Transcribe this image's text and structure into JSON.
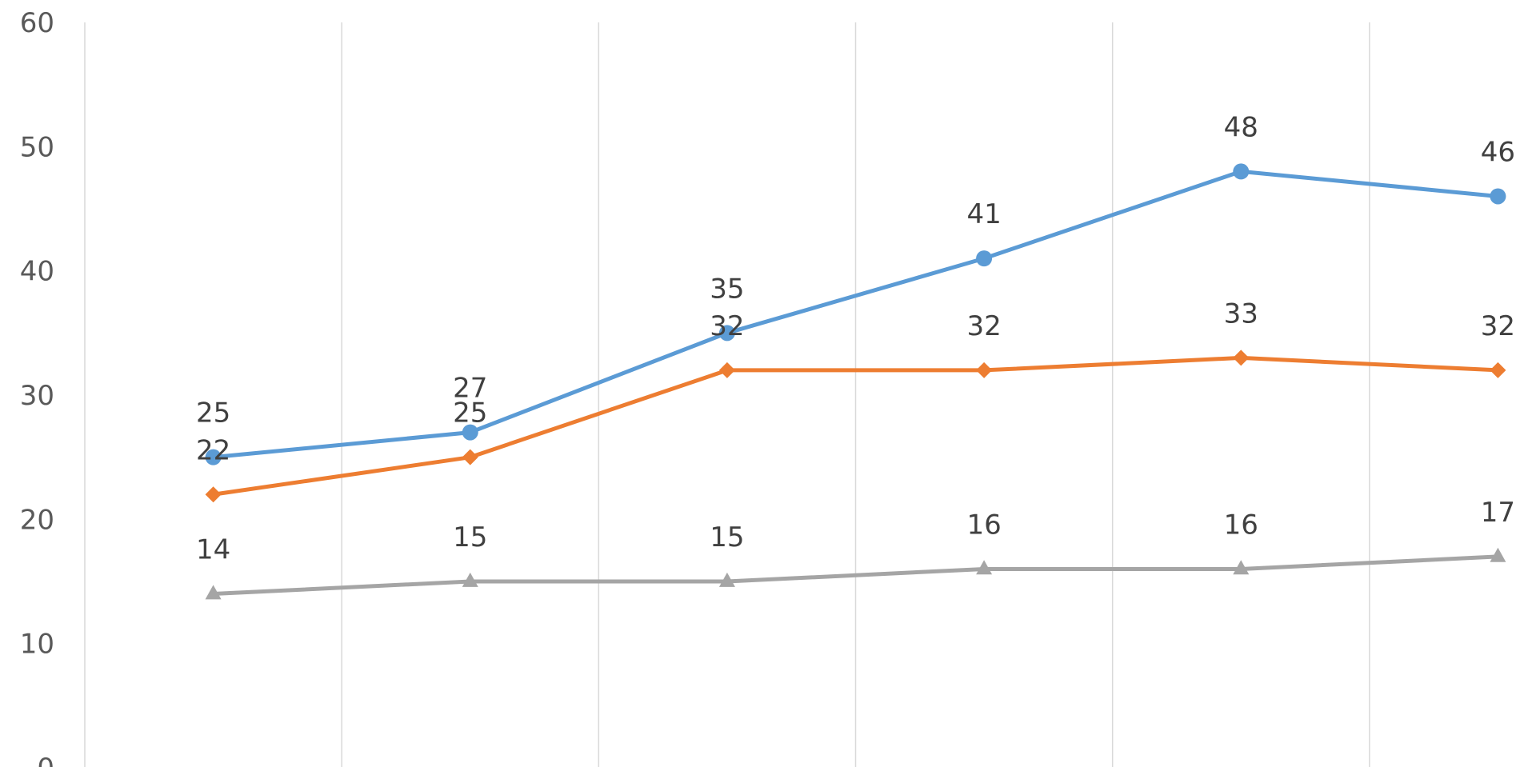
{
  "chart_data": {
    "type": "line",
    "title": "",
    "xlabel": "",
    "ylabel": "",
    "ylim": [
      0,
      60
    ],
    "yticks": [
      "0",
      "10",
      "20",
      "30",
      "40",
      "50",
      "60"
    ],
    "grid": "vertical",
    "legend": "none",
    "x_count": 6,
    "series": [
      {
        "values": [
          25,
          27,
          35,
          41,
          48,
          46
        ],
        "labels": [
          "25",
          "27",
          "35",
          "41",
          "48",
          "46"
        ],
        "color": "#5b9bd5",
        "marker": "circle"
      },
      {
        "values": [
          22,
          25,
          32,
          32,
          33,
          32
        ],
        "labels": [
          "22",
          "25",
          "32",
          "32",
          "33",
          "32"
        ],
        "color": "#ed7d31",
        "marker": "diamond"
      },
      {
        "values": [
          14,
          15,
          15,
          16,
          16,
          17
        ],
        "labels": [
          "14",
          "15",
          "15",
          "16",
          "16",
          "17"
        ],
        "color": "#a5a5a5",
        "marker": "triangle"
      }
    ]
  }
}
